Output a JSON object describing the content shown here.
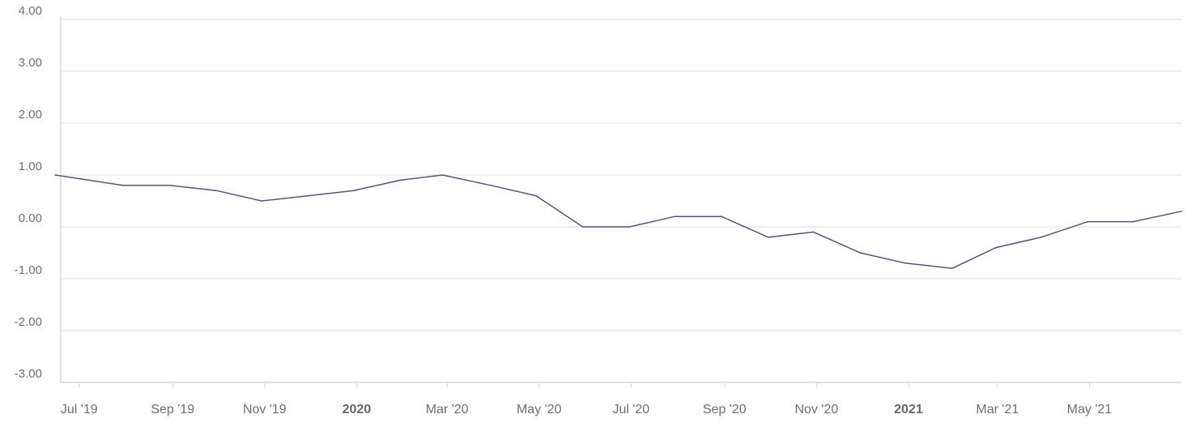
{
  "chart_data": {
    "type": "line",
    "title": "",
    "xlabel": "",
    "ylabel": "",
    "ylim": [
      -3,
      4
    ],
    "y_ticks": [
      "4.00",
      "3.00",
      "2.00",
      "1.00",
      "0.00",
      "-1.00",
      "-2.00",
      "-3.00"
    ],
    "grid": true,
    "legend": "none",
    "x_ticks": [
      {
        "date": "2019-07-01",
        "label": "Jul '19",
        "bold": false
      },
      {
        "date": "2019-09-01",
        "label": "Sep '19",
        "bold": false
      },
      {
        "date": "2019-11-01",
        "label": "Nov '19",
        "bold": false
      },
      {
        "date": "2020-01-01",
        "label": "2020",
        "bold": true
      },
      {
        "date": "2020-03-01",
        "label": "Mar '20",
        "bold": false
      },
      {
        "date": "2020-05-01",
        "label": "May '20",
        "bold": false
      },
      {
        "date": "2020-07-01",
        "label": "Jul '20",
        "bold": false
      },
      {
        "date": "2020-09-01",
        "label": "Sep '20",
        "bold": false
      },
      {
        "date": "2020-11-01",
        "label": "Nov '20",
        "bold": false
      },
      {
        "date": "2021-01-01",
        "label": "2021",
        "bold": true
      },
      {
        "date": "2021-03-01",
        "label": "Mar '21",
        "bold": false
      },
      {
        "date": "2021-05-01",
        "label": "May '21",
        "bold": false
      }
    ],
    "x_range": [
      "2019-06-15",
      "2021-07-01"
    ],
    "series": [
      {
        "color": "#4a5a78",
        "points": [
          {
            "x": "2019-06-15",
            "y": 1.0
          },
          {
            "x": "2019-07-30",
            "y": 0.8
          },
          {
            "x": "2019-08-30",
            "y": 0.8
          },
          {
            "x": "2019-09-30",
            "y": 0.7
          },
          {
            "x": "2019-10-30",
            "y": 0.5
          },
          {
            "x": "2019-11-30",
            "y": 0.6
          },
          {
            "x": "2019-12-30",
            "y": 0.7
          },
          {
            "x": "2020-01-30",
            "y": 0.9
          },
          {
            "x": "2020-02-27",
            "y": 1.0
          },
          {
            "x": "2020-03-30",
            "y": 0.8
          },
          {
            "x": "2020-04-29",
            "y": 0.6
          },
          {
            "x": "2020-05-30",
            "y": 0.0
          },
          {
            "x": "2020-06-30",
            "y": 0.0
          },
          {
            "x": "2020-07-30",
            "y": 0.2
          },
          {
            "x": "2020-08-30",
            "y": 0.2
          },
          {
            "x": "2020-09-30",
            "y": -0.2
          },
          {
            "x": "2020-10-30",
            "y": -0.1
          },
          {
            "x": "2020-11-30",
            "y": -0.5
          },
          {
            "x": "2020-12-30",
            "y": -0.7
          },
          {
            "x": "2021-01-30",
            "y": -0.8
          },
          {
            "x": "2021-02-28",
            "y": -0.4
          },
          {
            "x": "2021-03-30",
            "y": -0.2
          },
          {
            "x": "2021-04-30",
            "y": 0.1
          },
          {
            "x": "2021-05-30",
            "y": 0.1
          },
          {
            "x": "2021-07-01",
            "y": 0.3
          }
        ]
      }
    ]
  }
}
